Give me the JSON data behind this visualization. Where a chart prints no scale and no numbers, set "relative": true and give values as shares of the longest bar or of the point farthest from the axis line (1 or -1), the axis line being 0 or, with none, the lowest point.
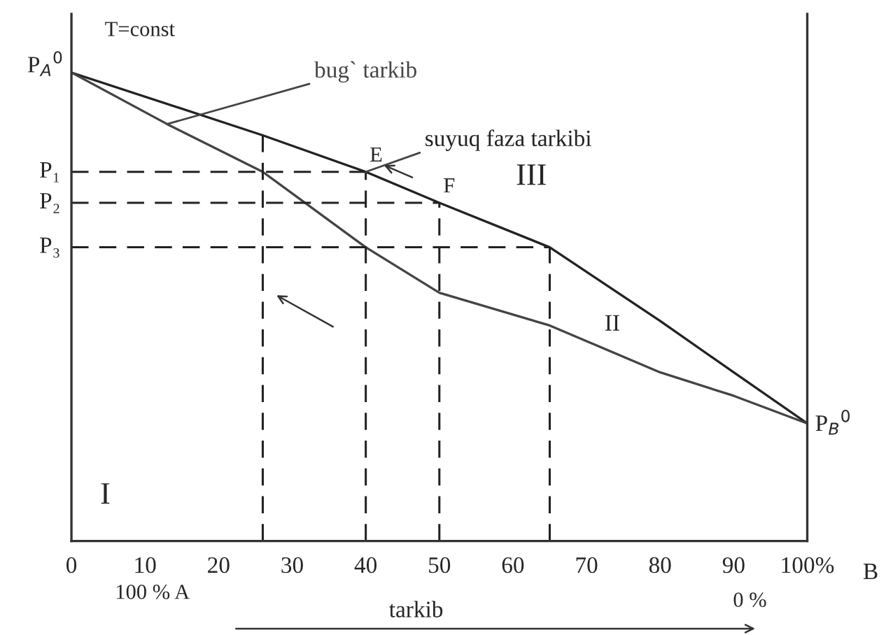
{
  "chart_data": {
    "type": "line",
    "relative": true,
    "xlim": [
      0,
      100
    ],
    "xticks": [
      0,
      10,
      20,
      30,
      40,
      50,
      60,
      70,
      80,
      90,
      {
        "value": 100,
        "label": "100%"
      }
    ],
    "series": [
      {
        "name": "suyuq faza tarkibi",
        "color": "#222222",
        "x": [
          0,
          26,
          40,
          50,
          65,
          80,
          90,
          100
        ],
        "values": [
          1,
          0.866,
          0.788,
          0.722,
          0.627,
          0.47,
          0.36,
          0.251
        ]
      },
      {
        "name": "bug` tarkib",
        "color": "#444444",
        "x": [
          0,
          13,
          26,
          40,
          50,
          65,
          80,
          90,
          100
        ],
        "values": [
          1,
          0.89,
          0.788,
          0.627,
          0.53,
          0.46,
          0.36,
          0.31,
          0.251
        ]
      }
    ],
    "ref_lines": [
      {
        "axis": "y",
        "value": 0.788,
        "label": "P₁",
        "line_style": "dashed"
      },
      {
        "axis": "y",
        "value": 0.722,
        "label": "P₂",
        "line_style": "dashed"
      },
      {
        "axis": "y",
        "value": 0.627,
        "label": "P₃",
        "line_style": "dashed"
      },
      {
        "axis": "x",
        "value": 26,
        "line_style": "dashed"
      },
      {
        "axis": "x",
        "value": 40,
        "line_style": "dashed"
      },
      {
        "axis": "x",
        "value": 50,
        "line_style": "dashed"
      },
      {
        "axis": "x",
        "value": 65,
        "line_style": "dashed"
      }
    ],
    "annotations": [
      "T=const",
      "I",
      "II",
      "III",
      "tarkib",
      "100 % A",
      "0 %",
      "B",
      {
        "text": "E",
        "x": 40,
        "y": 0.788
      },
      {
        "text": "F",
        "x": 50,
        "y": 0.722
      },
      {
        "text": "P$_{A}$$^{0}$",
        "x": 0,
        "y": 1
      },
      {
        "text": "P$_{B}$$^{0}$",
        "x": 100,
        "y": 0.251
      }
    ],
    "grid": false,
    "line_style": "solid"
  }
}
